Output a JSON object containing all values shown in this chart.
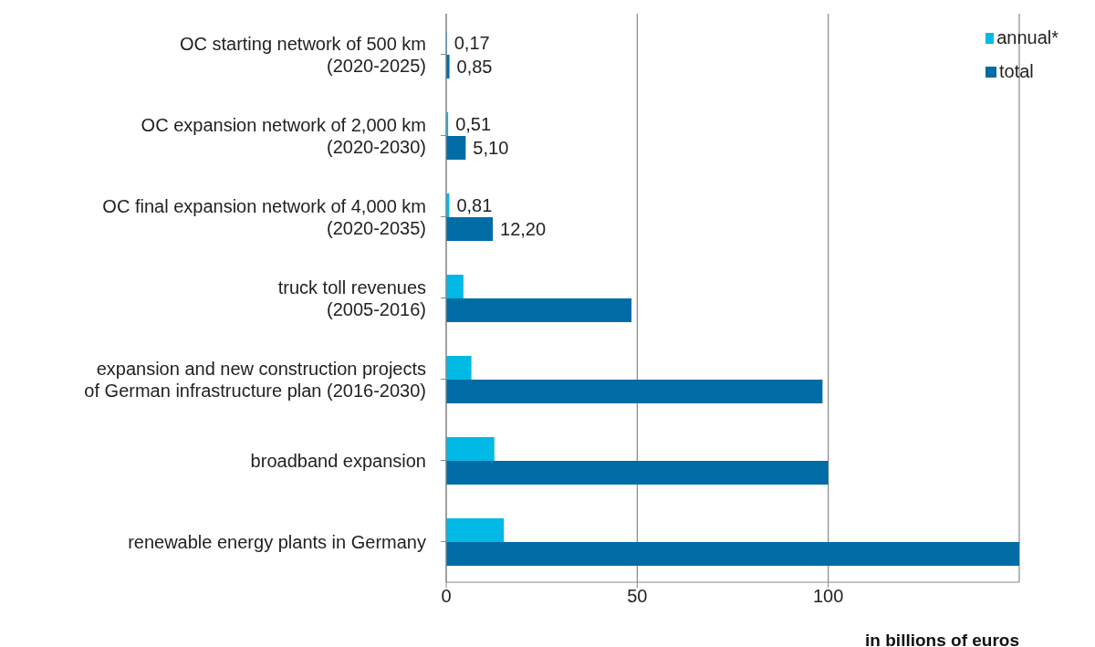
{
  "chart_data": {
    "type": "bar",
    "orientation": "horizontal",
    "categories": [
      "OC starting network of 500 km\n(2020-2025)",
      "OC expansion network of 2,000 km\n(2020-2030)",
      "OC final expansion network of 4,000 km\n(2020-2035)",
      "truck toll revenues\n(2005-2016)",
      "expansion and new construction projects\nof German infrastructure plan (2016-2030)",
      "broadband expansion",
      "renewable energy plants in Germany"
    ],
    "series": [
      {
        "name": "annual*",
        "color": "#00b9e4",
        "values": [
          0.17,
          0.51,
          0.81,
          4.5,
          6.6,
          12.6,
          15.1
        ],
        "value_labels": [
          "0,17",
          "0,51",
          "0,81",
          null,
          null,
          null,
          null
        ]
      },
      {
        "name": "total",
        "color": "#006ca5",
        "values": [
          0.85,
          5.1,
          12.2,
          48.5,
          98.5,
          100,
          150
        ],
        "value_labels": [
          "0,85",
          "5,10",
          "12,20",
          null,
          null,
          null,
          null
        ]
      }
    ],
    "xlim": [
      0,
      150
    ],
    "xticks": [
      0,
      50,
      100
    ],
    "xlabel": "in billions of euros",
    "grid": "x",
    "legend": "top right"
  }
}
